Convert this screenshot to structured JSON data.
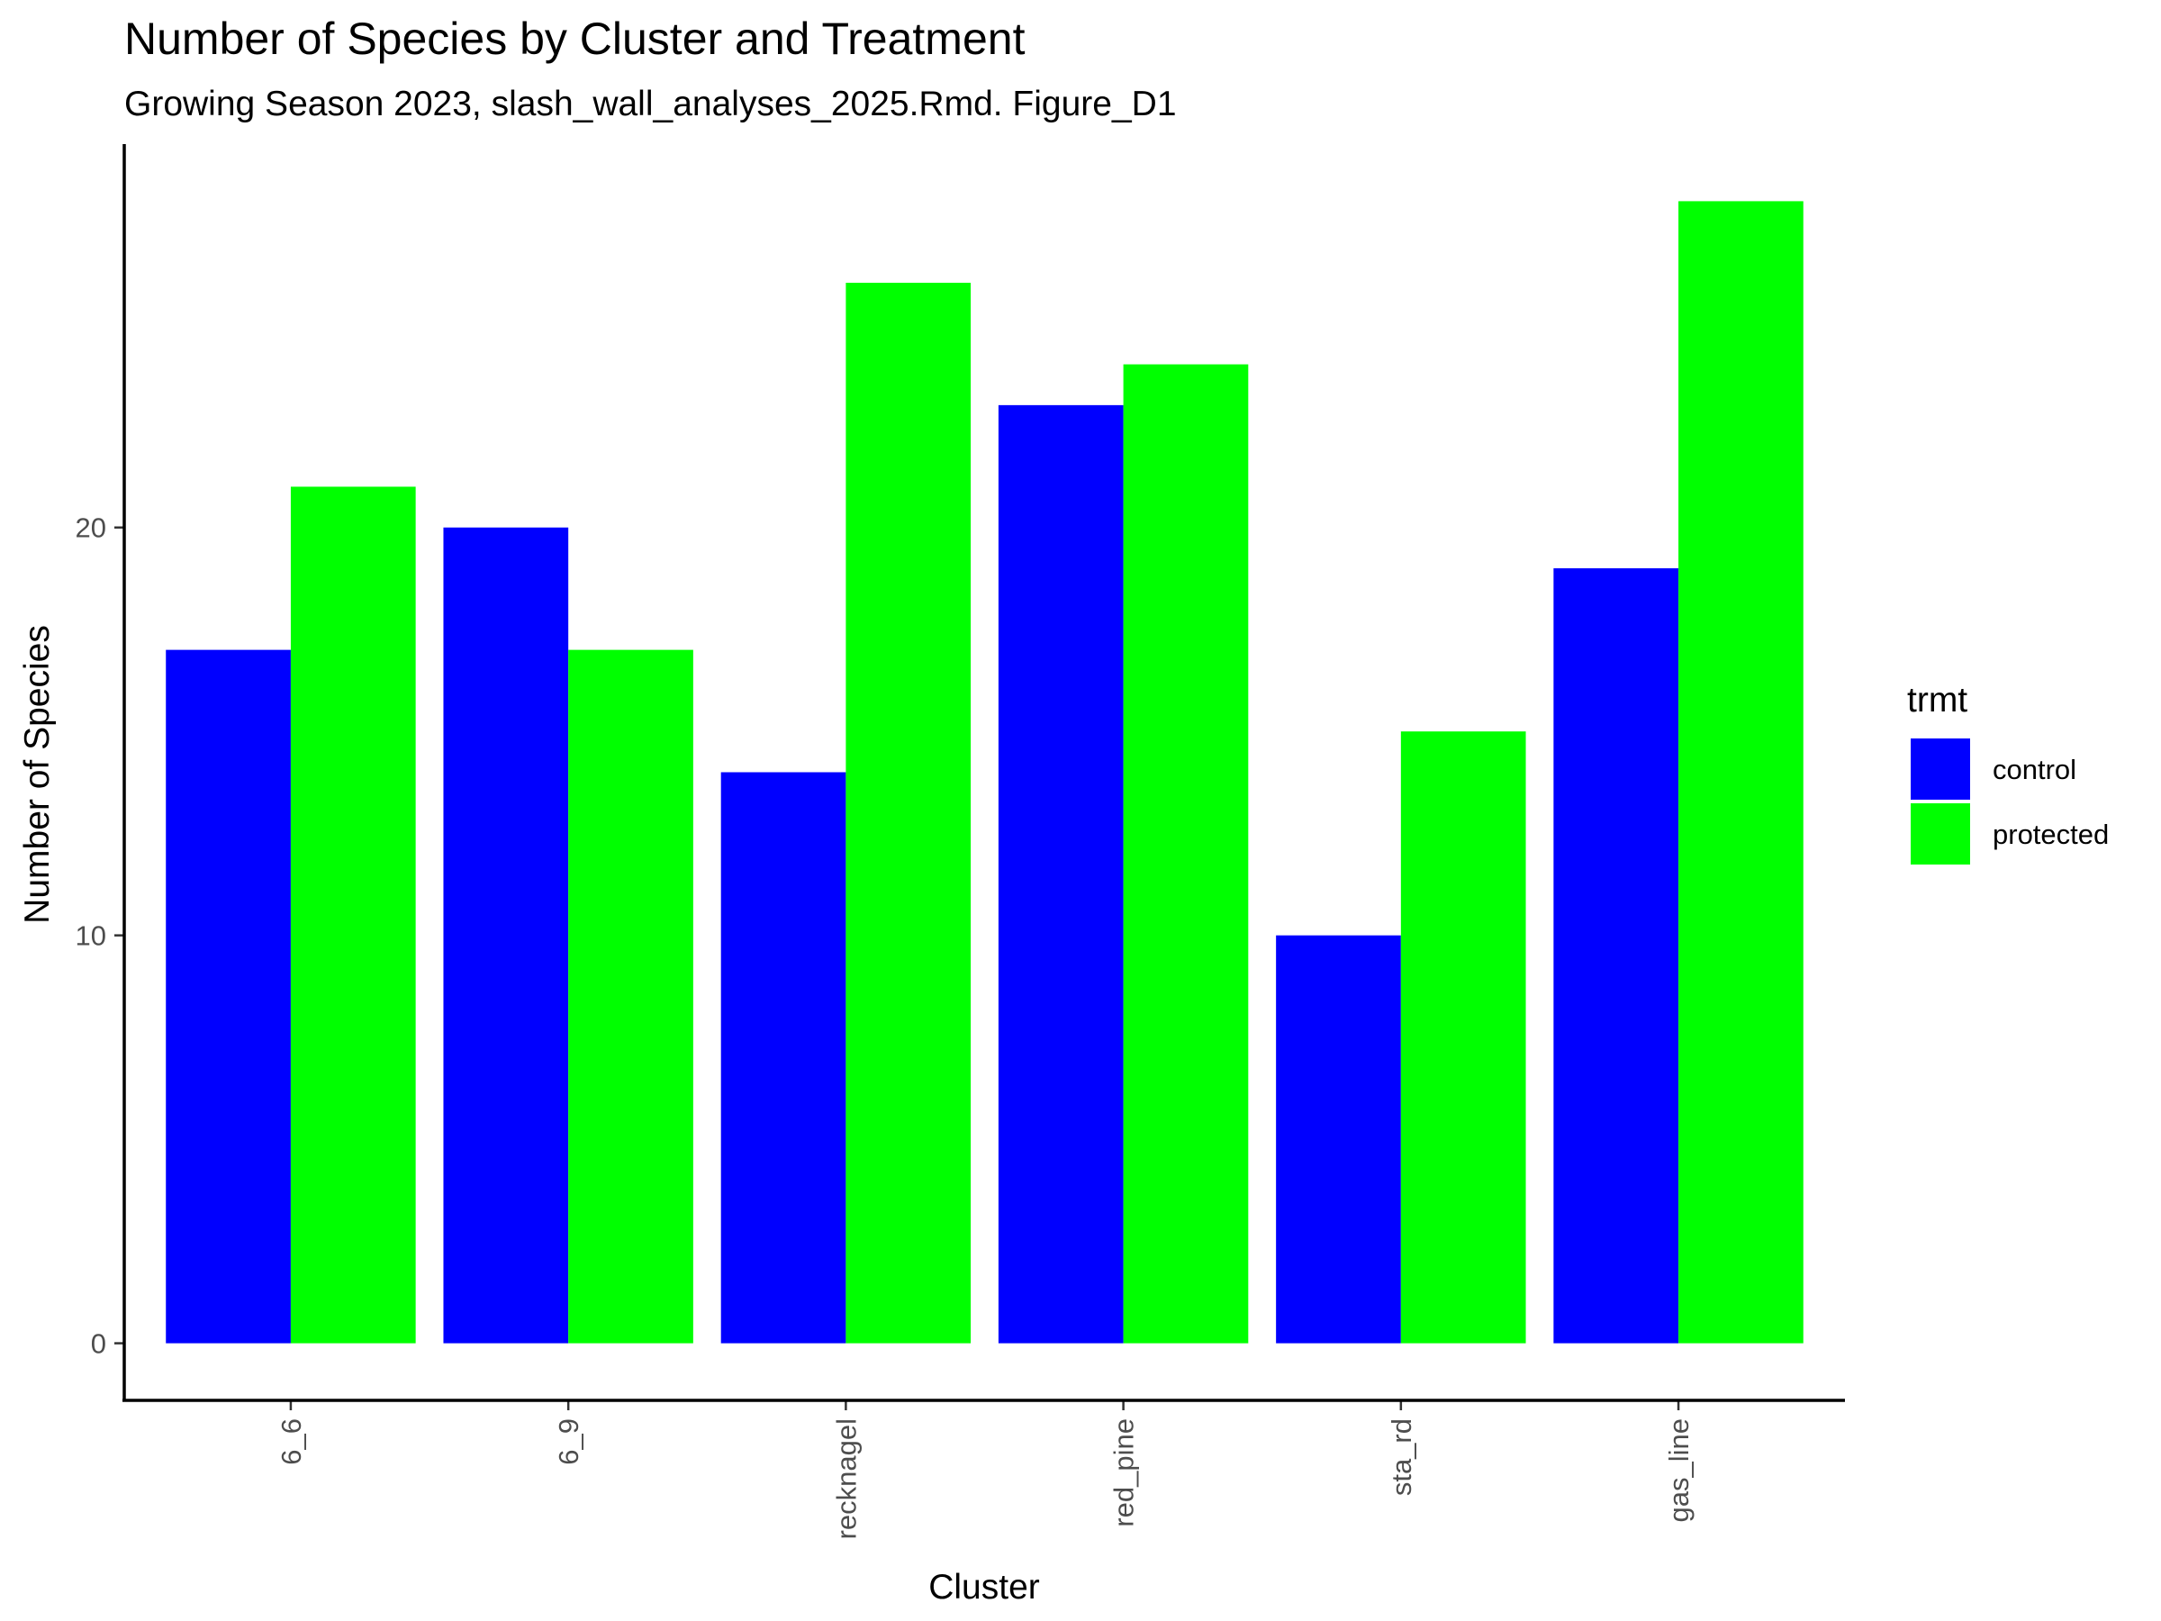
{
  "chart_data": {
    "type": "bar",
    "title": "Number of Species by Cluster and Treatment",
    "subtitle": "Growing Season 2023, slash_wall_analyses_2025.Rmd. Figure_D1",
    "xlabel": "Cluster",
    "ylabel": "Number of Species",
    "categories": [
      "6_6",
      "6_9",
      "recknagel",
      "red_pine",
      "sta_rd",
      "gas_line"
    ],
    "series": [
      {
        "name": "control",
        "color": "#0000ff",
        "values": [
          17,
          20,
          14,
          23,
          10,
          19
        ]
      },
      {
        "name": "protected",
        "color": "#00ff00",
        "values": [
          21,
          17,
          26,
          24,
          15,
          28
        ]
      }
    ],
    "ylim": [
      -1.4,
      29.4
    ],
    "yticks": [
      0,
      10,
      20
    ],
    "legend": {
      "title": "trmt",
      "placement": "right"
    },
    "grid": false
  }
}
